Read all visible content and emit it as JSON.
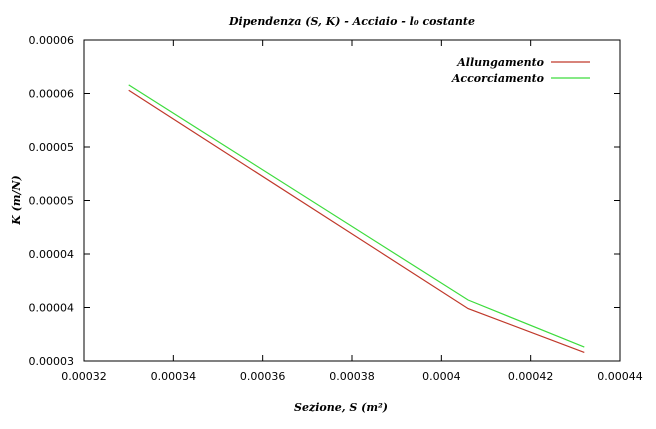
{
  "chart_data": {
    "type": "line",
    "title": "Dipendenza (S, K) - Acciaio - l₀ costante",
    "xlabel": "Sezione, S (m²)",
    "ylabel": "K (m/N)",
    "xlim": [
      0.00032,
      0.00044
    ],
    "ylim": [
      3e-05,
      6e-05
    ],
    "x_ticks": [
      0.00032,
      0.00034,
      0.00036,
      0.00038,
      0.0004,
      0.00042,
      0.00044
    ],
    "x_tick_labels": [
      "0.00032",
      "0.00034",
      "0.00036",
      "0.00038",
      "0.0004",
      "0.00042",
      "0.00044"
    ],
    "y_ticks": [
      3e-05,
      3.5e-05,
      4e-05,
      4.5e-05,
      5e-05,
      5.5e-05,
      6e-05
    ],
    "y_tick_labels": [
      "0.00003",
      "0.00004",
      "0.00004",
      "0.00005",
      "0.00005",
      "0.00006",
      "0.00006"
    ],
    "grid": false,
    "legend_position": "top-right",
    "series": [
      {
        "name": "Allungamento",
        "color": "#c0392b",
        "x": [
          0.00033,
          0.000406,
          0.000432
        ],
        "y": [
          5.53e-05,
          3.49e-05,
          3.08e-05
        ]
      },
      {
        "name": "Accorciamento",
        "color": "#3ddc3d",
        "x": [
          0.00033,
          0.000406,
          0.000432
        ],
        "y": [
          5.58e-05,
          3.57e-05,
          3.13e-05
        ]
      }
    ]
  }
}
